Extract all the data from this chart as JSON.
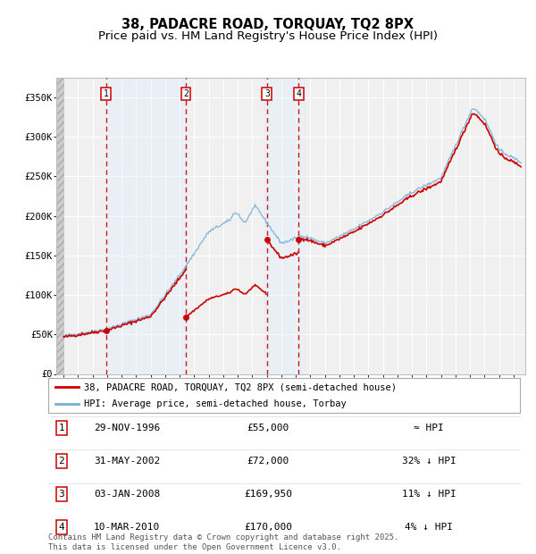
{
  "title": "38, PADACRE ROAD, TORQUAY, TQ2 8PX",
  "subtitle": "Price paid vs. HM Land Registry's House Price Index (HPI)",
  "ylim": [
    0,
    375000
  ],
  "yticks": [
    0,
    50000,
    100000,
    150000,
    200000,
    250000,
    300000,
    350000
  ],
  "ytick_labels": [
    "£0",
    "£50K",
    "£100K",
    "£150K",
    "£200K",
    "£250K",
    "£300K",
    "£350K"
  ],
  "background_color": "#ffffff",
  "plot_bg_color": "#f0f0f0",
  "grid_color": "#ffffff",
  "title_fontsize": 10.5,
  "subtitle_fontsize": 9.5,
  "legend_label_red": "38, PADACRE ROAD, TORQUAY, TQ2 8PX (semi-detached house)",
  "legend_label_blue": "HPI: Average price, semi-detached house, Torbay",
  "transactions": [
    {
      "num": 1,
      "date": "29-NOV-1996",
      "price": 55000,
      "year": 1996.92,
      "hpi_rel": "≈ HPI"
    },
    {
      "num": 2,
      "date": "31-MAY-2002",
      "price": 72000,
      "year": 2002.42,
      "hpi_rel": "32% ↓ HPI"
    },
    {
      "num": 3,
      "date": "03-JAN-2008",
      "price": 169950,
      "year": 2008.01,
      "hpi_rel": "11% ↓ HPI"
    },
    {
      "num": 4,
      "date": "10-MAR-2010",
      "price": 170000,
      "year": 2010.19,
      "hpi_rel": "4% ↓ HPI"
    }
  ],
  "footer": "Contains HM Land Registry data © Crown copyright and database right 2025.\nThis data is licensed under the Open Government Licence v3.0.",
  "red_line_color": "#cc0000",
  "blue_line_color": "#7aaed4",
  "marker_color": "#cc0000",
  "vline_color": "#cc0000",
  "box_color": "#cc0000",
  "shade_color": "#ddeeff"
}
